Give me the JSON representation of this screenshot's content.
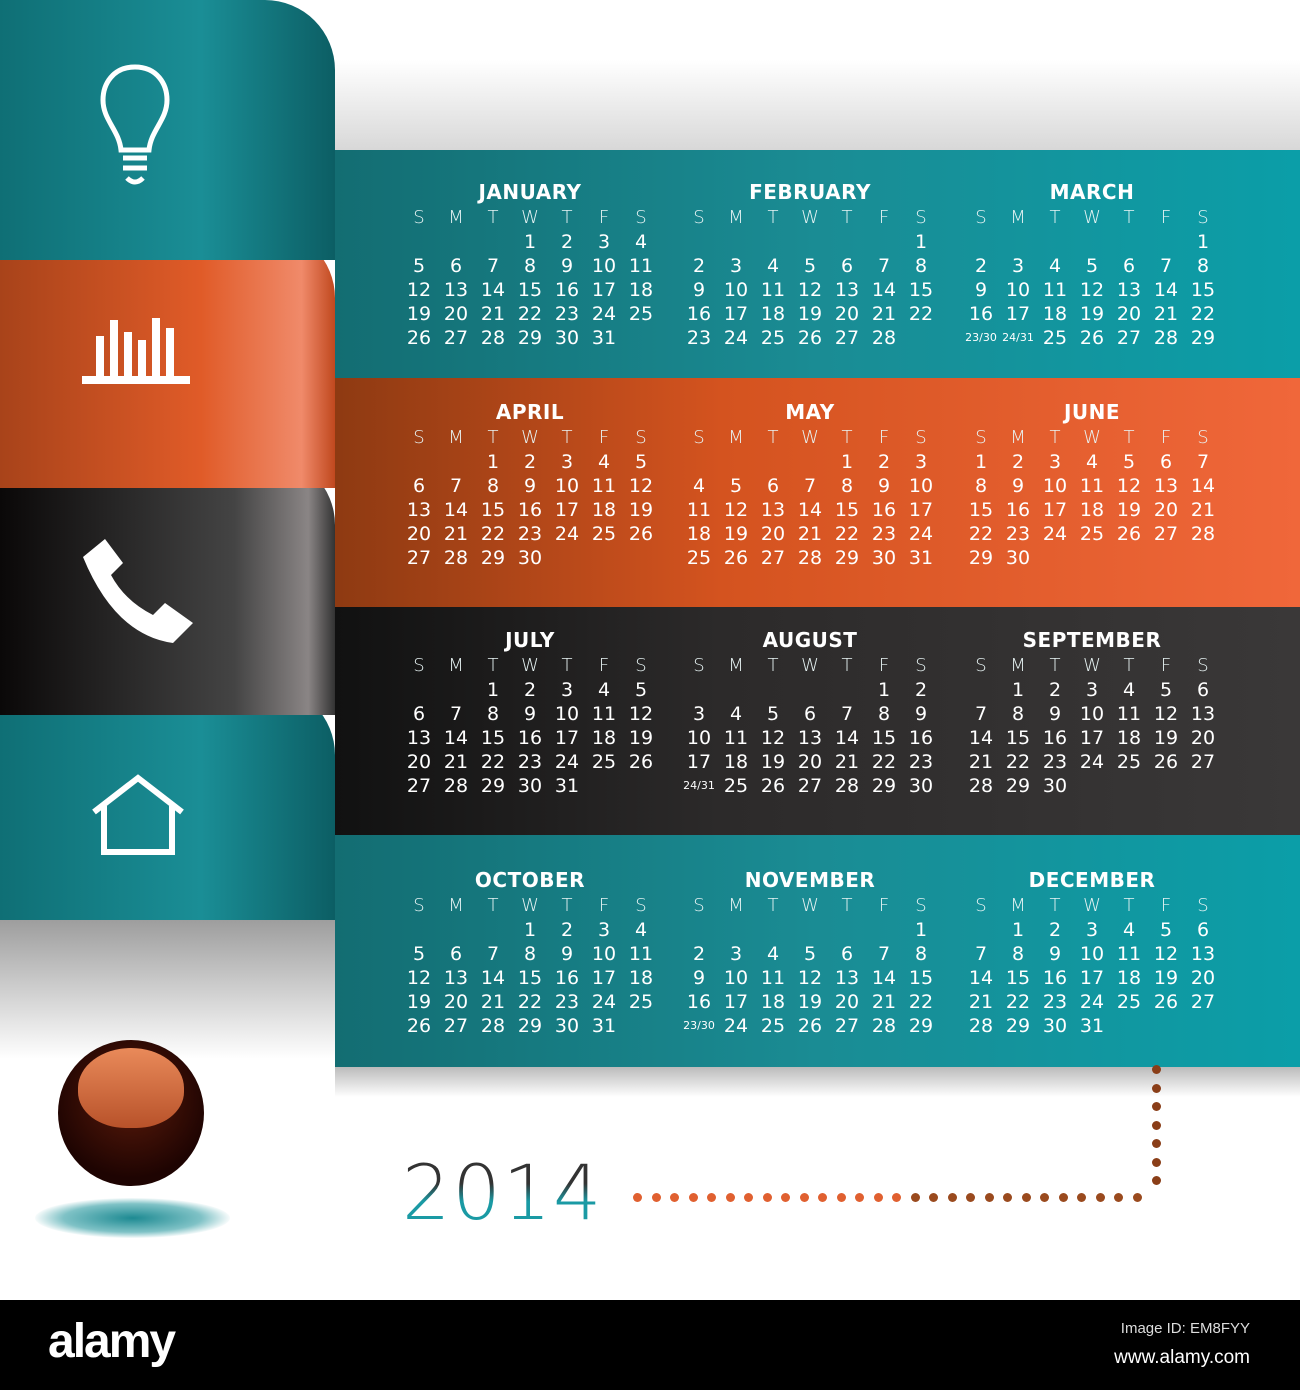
{
  "year": "2014",
  "colors": {
    "teal": "#1a8c94",
    "orange": "#e05b28",
    "dark": "#2c2a2a"
  },
  "icons": [
    "lightbulb-icon",
    "bar-chart-icon",
    "phone-icon",
    "house-icon"
  ],
  "weekdays": [
    "S",
    "M",
    "T",
    "W",
    "T",
    "F",
    "S"
  ],
  "months": [
    {
      "name": "JANUARY",
      "weeks": [
        [
          "",
          "",
          "",
          "1",
          "2",
          "3",
          "4"
        ],
        [
          "5",
          "6",
          "7",
          "8",
          "9",
          "10",
          "11"
        ],
        [
          "12",
          "13",
          "14",
          "15",
          "16",
          "17",
          "18"
        ],
        [
          "19",
          "20",
          "21",
          "22",
          "23",
          "24",
          "25"
        ],
        [
          "26",
          "27",
          "28",
          "29",
          "30",
          "31",
          ""
        ]
      ]
    },
    {
      "name": "FEBRUARY",
      "weeks": [
        [
          "",
          "",
          "",
          "",
          "",
          "",
          "1"
        ],
        [
          "2",
          "3",
          "4",
          "5",
          "6",
          "7",
          "8"
        ],
        [
          "9",
          "10",
          "11",
          "12",
          "13",
          "14",
          "15"
        ],
        [
          "16",
          "17",
          "18",
          "19",
          "20",
          "21",
          "22"
        ],
        [
          "23",
          "24",
          "25",
          "26",
          "27",
          "28",
          ""
        ]
      ]
    },
    {
      "name": "MARCH",
      "weeks": [
        [
          "",
          "",
          "",
          "",
          "",
          "",
          "1"
        ],
        [
          "2",
          "3",
          "4",
          "5",
          "6",
          "7",
          "8"
        ],
        [
          "9",
          "10",
          "11",
          "12",
          "13",
          "14",
          "15"
        ],
        [
          "16",
          "17",
          "18",
          "19",
          "20",
          "21",
          "22"
        ],
        [
          "23/30",
          "24/31",
          "25",
          "26",
          "27",
          "28",
          "29"
        ]
      ]
    },
    {
      "name": "APRIL",
      "weeks": [
        [
          "",
          "",
          "1",
          "2",
          "3",
          "4",
          "5"
        ],
        [
          "6",
          "7",
          "8",
          "9",
          "10",
          "11",
          "12"
        ],
        [
          "13",
          "14",
          "15",
          "16",
          "17",
          "18",
          "19"
        ],
        [
          "20",
          "21",
          "22",
          "23",
          "24",
          "25",
          "26"
        ],
        [
          "27",
          "28",
          "29",
          "30",
          "",
          "",
          ""
        ]
      ]
    },
    {
      "name": "MAY",
      "weeks": [
        [
          "",
          "",
          "",
          "",
          "1",
          "2",
          "3"
        ],
        [
          "4",
          "5",
          "6",
          "7",
          "8",
          "9",
          "10"
        ],
        [
          "11",
          "12",
          "13",
          "14",
          "15",
          "16",
          "17"
        ],
        [
          "18",
          "19",
          "20",
          "21",
          "22",
          "23",
          "24"
        ],
        [
          "25",
          "26",
          "27",
          "28",
          "29",
          "30",
          "31"
        ]
      ]
    },
    {
      "name": "JUNE",
      "weeks": [
        [
          "1",
          "2",
          "3",
          "4",
          "5",
          "6",
          "7"
        ],
        [
          "8",
          "9",
          "10",
          "11",
          "12",
          "13",
          "14"
        ],
        [
          "15",
          "16",
          "17",
          "18",
          "19",
          "20",
          "21"
        ],
        [
          "22",
          "23",
          "24",
          "25",
          "26",
          "27",
          "28"
        ],
        [
          "29",
          "30",
          "",
          "",
          "",
          "",
          ""
        ]
      ]
    },
    {
      "name": "JULY",
      "weeks": [
        [
          "",
          "",
          "1",
          "2",
          "3",
          "4",
          "5"
        ],
        [
          "6",
          "7",
          "8",
          "9",
          "10",
          "11",
          "12"
        ],
        [
          "13",
          "14",
          "15",
          "16",
          "17",
          "18",
          "19"
        ],
        [
          "20",
          "21",
          "22",
          "23",
          "24",
          "25",
          "26"
        ],
        [
          "27",
          "28",
          "29",
          "30",
          "31",
          "",
          ""
        ]
      ]
    },
    {
      "name": "AUGUST",
      "weeks": [
        [
          "",
          "",
          "",
          "",
          "",
          "1",
          "2"
        ],
        [
          "3",
          "4",
          "5",
          "6",
          "7",
          "8",
          "9"
        ],
        [
          "10",
          "11",
          "12",
          "13",
          "14",
          "15",
          "16"
        ],
        [
          "17",
          "18",
          "19",
          "20",
          "21",
          "22",
          "23"
        ],
        [
          "24/31",
          "25",
          "26",
          "27",
          "28",
          "29",
          "30"
        ]
      ]
    },
    {
      "name": "SEPTEMBER",
      "weeks": [
        [
          "",
          "1",
          "2",
          "3",
          "4",
          "5",
          "6"
        ],
        [
          "7",
          "8",
          "9",
          "10",
          "11",
          "12",
          "13"
        ],
        [
          "14",
          "15",
          "16",
          "17",
          "18",
          "19",
          "20"
        ],
        [
          "21",
          "22",
          "23",
          "24",
          "25",
          "26",
          "27"
        ],
        [
          "28",
          "29",
          "30",
          "",
          "",
          "",
          ""
        ]
      ]
    },
    {
      "name": "OCTOBER",
      "weeks": [
        [
          "",
          "",
          "",
          "1",
          "2",
          "3",
          "4"
        ],
        [
          "5",
          "6",
          "7",
          "8",
          "9",
          "10",
          "11"
        ],
        [
          "12",
          "13",
          "14",
          "15",
          "16",
          "17",
          "18"
        ],
        [
          "19",
          "20",
          "21",
          "22",
          "23",
          "24",
          "25"
        ],
        [
          "26",
          "27",
          "28",
          "29",
          "30",
          "31",
          ""
        ]
      ]
    },
    {
      "name": "NOVEMBER",
      "weeks": [
        [
          "",
          "",
          "",
          "",
          "",
          "",
          "1"
        ],
        [
          "2",
          "3",
          "4",
          "5",
          "6",
          "7",
          "8"
        ],
        [
          "9",
          "10",
          "11",
          "12",
          "13",
          "14",
          "15"
        ],
        [
          "16",
          "17",
          "18",
          "19",
          "20",
          "21",
          "22"
        ],
        [
          "23/30",
          "24",
          "25",
          "26",
          "27",
          "28",
          "29"
        ]
      ]
    },
    {
      "name": "DECEMBER",
      "weeks": [
        [
          "",
          "1",
          "2",
          "3",
          "4",
          "5",
          "6"
        ],
        [
          "7",
          "8",
          "9",
          "10",
          "11",
          "12",
          "13"
        ],
        [
          "14",
          "15",
          "16",
          "17",
          "18",
          "19",
          "20"
        ],
        [
          "21",
          "22",
          "23",
          "24",
          "25",
          "26",
          "27"
        ],
        [
          "28",
          "29",
          "30",
          "31",
          "",
          "",
          ""
        ]
      ]
    }
  ],
  "footer": {
    "logo": "alamy",
    "image_id": "Image ID: EM8FYY",
    "url": "www.alamy.com"
  }
}
